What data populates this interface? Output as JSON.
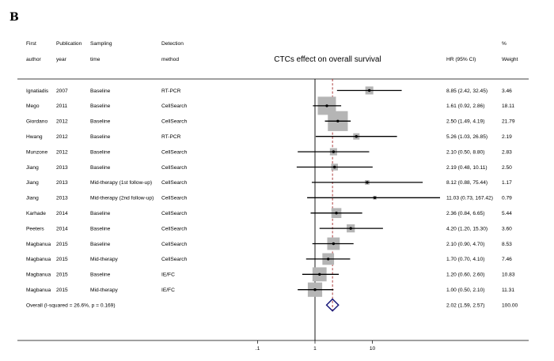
{
  "panel_label": "B",
  "chart_data": {
    "type": "forest",
    "title": "CTCs effect on overall survival",
    "columns": {
      "first_author": [
        "First",
        "author"
      ],
      "publication_year": [
        "Publication",
        "year"
      ],
      "sampling_time": [
        "Sampling",
        "time"
      ],
      "detection_method": [
        "Detection",
        "method"
      ],
      "hr": [
        "",
        "HR (95% CI)"
      ],
      "weight": [
        "%",
        "Weight"
      ]
    },
    "studies": [
      {
        "author": "Ignatiadis",
        "year": "2007",
        "sampling": "Baseline",
        "method": "RT-PCR",
        "hr": 8.85,
        "lo": 2.42,
        "hi": 32.45,
        "hr_text": "8.85 (2.42, 32.45)",
        "weight": "3.46",
        "weight_value": 3.46
      },
      {
        "author": "Mego",
        "year": "2011",
        "sampling": "Baseline",
        "method": "CellSearch",
        "hr": 1.61,
        "lo": 0.92,
        "hi": 2.86,
        "hr_text": "1.61 (0.92, 2.86)",
        "weight": "18.11",
        "weight_value": 18.11
      },
      {
        "author": "Giordano",
        "year": "2012",
        "sampling": "Baseline",
        "method": "CellSearch",
        "hr": 2.5,
        "lo": 1.49,
        "hi": 4.19,
        "hr_text": "2.50 (1.49, 4.19)",
        "weight": "21.79",
        "weight_value": 21.79
      },
      {
        "author": "Hwang",
        "year": "2012",
        "sampling": "Baseline",
        "method": "RT-PCR",
        "hr": 5.26,
        "lo": 1.03,
        "hi": 26.85,
        "hr_text": "5.26 (1.03, 26.85)",
        "weight": "2.19",
        "weight_value": 2.19
      },
      {
        "author": "Munzone",
        "year": "2012",
        "sampling": "Baseline",
        "method": "CellSearch",
        "hr": 2.1,
        "lo": 0.5,
        "hi": 8.8,
        "hr_text": "2.10 (0.50, 8.80)",
        "weight": "2.83",
        "weight_value": 2.83
      },
      {
        "author": "Jiang",
        "year": "2013",
        "sampling": "Baseline",
        "method": "CellSearch",
        "hr": 2.19,
        "lo": 0.48,
        "hi": 10.11,
        "hr_text": "2.19 (0.48, 10.11)",
        "weight": "2.50",
        "weight_value": 2.5
      },
      {
        "author": "Jiang",
        "year": "2013",
        "sampling": "Mid-therapy (1st follow-up)",
        "method": "CellSearch",
        "hr": 8.12,
        "lo": 0.88,
        "hi": 75.44,
        "hr_text": "8.12 (0.88, 75.44)",
        "weight": "1.17",
        "weight_value": 1.17
      },
      {
        "author": "Jiang",
        "year": "2013",
        "sampling": "Mid-therapy (2nd follow-up)",
        "method": "CellSearch",
        "hr": 11.03,
        "lo": 0.73,
        "hi": 167.42,
        "hr_text": "11.03 (0.73, 167.42)",
        "weight": "0.79",
        "weight_value": 0.79
      },
      {
        "author": "Karhade",
        "year": "2014",
        "sampling": "Baseline",
        "method": "CellSearch",
        "hr": 2.36,
        "lo": 0.84,
        "hi": 6.65,
        "hr_text": "2.36 (0.84, 6.65)",
        "weight": "5.44",
        "weight_value": 5.44
      },
      {
        "author": "Peeters",
        "year": "2014",
        "sampling": "Baseline",
        "method": "CellSearch",
        "hr": 4.2,
        "lo": 1.2,
        "hi": 15.3,
        "hr_text": "4.20 (1.20, 15.30)",
        "weight": "3.60",
        "weight_value": 3.6
      },
      {
        "author": "Magbanua",
        "year": "2015",
        "sampling": "Baseline",
        "method": "CellSearch",
        "hr": 2.1,
        "lo": 0.9,
        "hi": 4.7,
        "hr_text": "2.10 (0.90, 4.70)",
        "weight": "8.53",
        "weight_value": 8.53
      },
      {
        "author": "Magbanua",
        "year": "2015",
        "sampling": "Mid-therapy",
        "method": "CellSearch",
        "hr": 1.7,
        "lo": 0.7,
        "hi": 4.1,
        "hr_text": "1.70 (0.70, 4.10)",
        "weight": "7.46",
        "weight_value": 7.46
      },
      {
        "author": "Magbanua",
        "year": "2015",
        "sampling": "Baseline",
        "method": "IE/FC",
        "hr": 1.2,
        "lo": 0.6,
        "hi": 2.6,
        "hr_text": "1.20 (0.60, 2.60)",
        "weight": "10.83",
        "weight_value": 10.83
      },
      {
        "author": "Magbanua",
        "year": "2015",
        "sampling": "Mid-therapy",
        "method": "IE/FC",
        "hr": 1.0,
        "lo": 0.5,
        "hi": 2.1,
        "hr_text": "1.00 (0.50, 2.10)",
        "weight": "11.31",
        "weight_value": 11.31
      }
    ],
    "overall": {
      "label": "Overall  (I-squared = 26.6%, p = 0.169)",
      "hr": 2.02,
      "lo": 1.59,
      "hi": 2.57,
      "hr_text": "2.02 (1.59, 2.57)",
      "weight": "100.00"
    },
    "x_axis": {
      "scale": "log",
      "ticks": [
        0.1,
        1,
        10
      ],
      "tick_labels": [
        ".1",
        "1",
        "10"
      ],
      "xlim": [
        0.05,
        200
      ],
      "null_value": 1
    },
    "colors": {
      "box": "#b5b5b5",
      "line": "#000000",
      "overall_line": "#a52a2a",
      "diamond": "#1a1a7a"
    }
  }
}
